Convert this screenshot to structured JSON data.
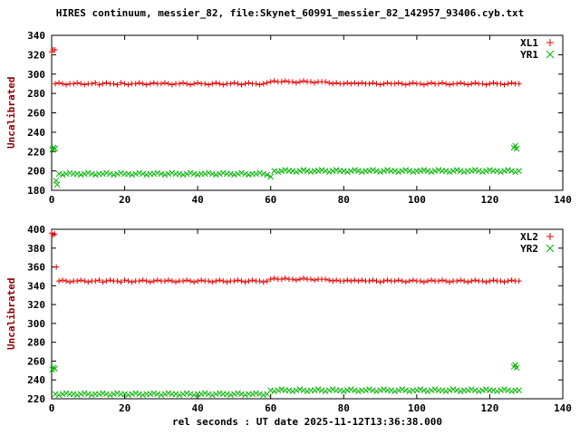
{
  "title": "HIRES continuum, messier_82, file:Skynet_60991_messier_82_142957_93406.cyb.txt",
  "xlabel": "rel seconds : UT date 2025-11-12T13:36:38.000",
  "colors": {
    "background": "#ffffff",
    "axis": "#000000",
    "ylabel_text": "#8b0000",
    "series_red": "#e60000",
    "series_green": "#00b400"
  },
  "chart_data": [
    {
      "type": "scatter",
      "ylabel": "Uncalibrated",
      "xlim": [
        0,
        140
      ],
      "xtick": 20,
      "ylim": [
        180,
        340
      ],
      "ytick": 20,
      "legend_position": "top-right",
      "series": [
        {
          "name": "XL1",
          "marker": "plus",
          "color": "#e60000",
          "outliers": [
            [
              0,
              323
            ],
            [
              0.4,
              325
            ],
            [
              0.9,
              325
            ]
          ],
          "baseline": {
            "x0": 1,
            "dx": 1,
            "y": [
              290,
              291,
              290,
              289,
              290,
              290,
              291,
              290,
              289,
              290,
              290,
              291,
              289,
              290,
              291,
              290,
              290,
              289,
              291,
              290,
              289,
              290,
              290,
              291,
              290,
              289,
              290,
              291,
              290,
              290,
              291,
              290,
              289,
              290,
              290,
              291,
              290,
              289,
              290,
              291,
              290,
              290,
              289,
              290,
              291,
              290,
              289,
              290,
              290,
              291,
              290,
              289,
              290,
              291,
              290,
              290,
              289,
              290,
              291,
              292,
              293,
              292,
              292,
              293,
              292,
              292,
              291,
              292,
              293,
              292,
              292,
              291,
              292,
              292,
              292,
              291,
              290,
              291,
              290,
              290,
              291,
              290,
              291,
              290,
              291,
              290,
              290,
              291,
              290,
              289,
              290,
              291,
              290,
              290,
              291,
              290,
              289,
              290,
              291,
              290,
              290,
              289,
              290,
              291,
              290,
              290,
              291,
              290,
              289,
              290,
              290,
              291,
              290,
              289,
              290,
              291,
              290,
              290,
              289,
              290,
              291,
              290,
              290,
              289,
              290,
              291,
              290,
              290
            ]
          }
        },
        {
          "name": "YR1",
          "marker": "cross",
          "color": "#00b400",
          "outliers": [
            [
              0.2,
              222
            ],
            [
              0.5,
              224
            ],
            [
              0.9,
              223
            ],
            [
              1.2,
              190
            ],
            [
              1.5,
              186
            ],
            [
              126.6,
              224
            ],
            [
              127,
              226
            ],
            [
              127.4,
              223
            ]
          ],
          "baseline": {
            "x0": 2,
            "dx": 1,
            "y": [
              197,
              196,
              197,
              198,
              197,
              197,
              196,
              197,
              198,
              197,
              196,
              197,
              197,
              198,
              197,
              196,
              197,
              198,
              197,
              197,
              196,
              197,
              198,
              197,
              196,
              197,
              197,
              198,
              197,
              196,
              197,
              198,
              197,
              197,
              196,
              197,
              198,
              197,
              196,
              197,
              197,
              198,
              197,
              196,
              197,
              198,
              197,
              197,
              196,
              197,
              198,
              197,
              196,
              197,
              197,
              198,
              197,
              196,
              194,
              200,
              199,
              200,
              201,
              200,
              200,
              199,
              200,
              201,
              200,
              199,
              200,
              200,
              201,
              200,
              199,
              200,
              201,
              200,
              200,
              199,
              200,
              201,
              200,
              199,
              200,
              200,
              201,
              200,
              199,
              200,
              201,
              200,
              200,
              199,
              200,
              201,
              200,
              199,
              200,
              200,
              201,
              200,
              199,
              200,
              201,
              200,
              200,
              199,
              200,
              201,
              200,
              199,
              200,
              200,
              201,
              200,
              199,
              200,
              201,
              200,
              200,
              199,
              200,
              201,
              200,
              199,
              200
            ]
          }
        }
      ]
    },
    {
      "type": "scatter",
      "ylabel": "Uncalibrated",
      "xlim": [
        0,
        140
      ],
      "xtick": 20,
      "ylim": [
        220,
        400
      ],
      "ytick": 20,
      "legend_position": "top-right",
      "series": [
        {
          "name": "XL2",
          "marker": "plus",
          "color": "#e60000",
          "outliers": [
            [
              0,
              396
            ],
            [
              0.4,
              394
            ],
            [
              0.9,
              395
            ],
            [
              1.3,
              360
            ]
          ],
          "baseline": {
            "x0": 2,
            "dx": 1,
            "y": [
              345,
              346,
              345,
              344,
              345,
              345,
              346,
              345,
              344,
              345,
              345,
              346,
              344,
              345,
              346,
              345,
              345,
              344,
              346,
              345,
              344,
              345,
              345,
              346,
              345,
              344,
              345,
              346,
              345,
              345,
              346,
              345,
              344,
              345,
              345,
              346,
              345,
              344,
              345,
              346,
              345,
              345,
              344,
              345,
              346,
              345,
              344,
              345,
              345,
              346,
              345,
              344,
              345,
              346,
              345,
              345,
              344,
              345,
              347,
              348,
              347,
              347,
              348,
              347,
              347,
              346,
              347,
              348,
              347,
              347,
              346,
              347,
              347,
              347,
              346,
              345,
              346,
              345,
              345,
              346,
              345,
              346,
              345,
              346,
              345,
              345,
              346,
              345,
              344,
              345,
              346,
              345,
              345,
              346,
              345,
              344,
              345,
              346,
              345,
              345,
              344,
              345,
              346,
              345,
              345,
              346,
              345,
              344,
              345,
              345,
              346,
              345,
              344,
              345,
              346,
              345,
              345,
              344,
              345,
              346,
              345,
              345,
              344,
              345,
              346,
              345,
              345
            ]
          }
        },
        {
          "name": "YR2",
          "marker": "cross",
          "color": "#00b400",
          "outliers": [
            [
              0.2,
              251
            ],
            [
              0.5,
              253
            ],
            [
              0.9,
              252
            ],
            [
              126.6,
              254
            ],
            [
              127,
              256
            ],
            [
              127.4,
              253
            ]
          ],
          "baseline": {
            "x0": 1,
            "dx": 1,
            "y": [
              225,
              224,
              225,
              226,
              225,
              225,
              224,
              225,
              226,
              225,
              224,
              225,
              225,
              226,
              225,
              224,
              225,
              226,
              225,
              225,
              224,
              225,
              226,
              225,
              224,
              225,
              225,
              226,
              225,
              224,
              225,
              226,
              225,
              225,
              224,
              225,
              226,
              225,
              224,
              225,
              225,
              226,
              225,
              224,
              225,
              226,
              225,
              225,
              224,
              225,
              226,
              225,
              224,
              225,
              225,
              226,
              225,
              224,
              225,
              229,
              228,
              229,
              230,
              229,
              229,
              228,
              229,
              230,
              229,
              228,
              229,
              229,
              230,
              229,
              228,
              229,
              230,
              229,
              229,
              228,
              229,
              230,
              229,
              228,
              229,
              229,
              230,
              229,
              228,
              229,
              230,
              229,
              229,
              228,
              229,
              230,
              229,
              228,
              229,
              229,
              230,
              229,
              228,
              229,
              230,
              229,
              229,
              228,
              229,
              230,
              229,
              228,
              229,
              229,
              230,
              229,
              228,
              229,
              230,
              229,
              229,
              228,
              229,
              230,
              229,
              228,
              229,
              229
            ]
          }
        }
      ]
    }
  ]
}
